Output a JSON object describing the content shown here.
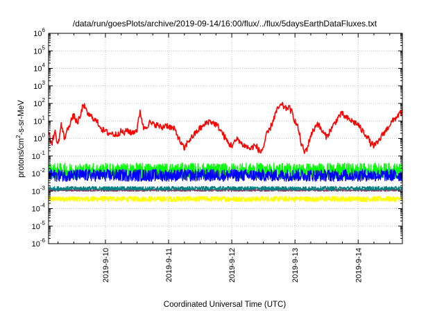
{
  "chart_data": {
    "type": "line",
    "title": "/data/run/goesPlots/archive/2019-09-14/16:00/flux/../flux/5daysEarthDataFluxes.txt",
    "xlabel": "Coordinated Universal Time (UTC)",
    "ylabel": {
      "pre": "protons/cm",
      "sup": "2",
      "post": "-s-sr-MeV"
    },
    "yscale": "log",
    "ylim_exp": [
      -6,
      6
    ],
    "y_ticks": [
      {
        "base": "10",
        "exp": "-6"
      },
      {
        "base": "10",
        "exp": "-5"
      },
      {
        "base": "10",
        "exp": "-4"
      },
      {
        "base": "10",
        "exp": "-3"
      },
      {
        "base": "10",
        "exp": "-2"
      },
      {
        "base": "10",
        "exp": "-1"
      },
      {
        "base": "10",
        "exp": "0"
      },
      {
        "base": "10",
        "exp": "1"
      },
      {
        "base": "10",
        "exp": "2"
      },
      {
        "base": "10",
        "exp": "3"
      },
      {
        "base": "10",
        "exp": "4"
      },
      {
        "base": "10",
        "exp": "5"
      },
      {
        "base": "10",
        "exp": "6"
      }
    ],
    "x_range_days": [
      9.1,
      14.7
    ],
    "x_ticks": [
      {
        "label": "2019-9-10",
        "day": 10
      },
      {
        "label": "2019-9-11",
        "day": 11
      },
      {
        "label": "2019-9-12",
        "day": 12
      },
      {
        "label": "2019-9-13",
        "day": 13
      },
      {
        "label": "2019-9-14",
        "day": 14
      }
    ],
    "grid": true,
    "series": [
      {
        "color": "#ff0000",
        "x": [
          9.1,
          9.15,
          9.2,
          9.25,
          9.3,
          9.35,
          9.4,
          9.45,
          9.5,
          9.55,
          9.6,
          9.65,
          9.7,
          9.75,
          9.8,
          9.85,
          9.9,
          9.95,
          10.0,
          10.05,
          10.1,
          10.15,
          10.2,
          10.25,
          10.3,
          10.35,
          10.4,
          10.45,
          10.5,
          10.55,
          10.6,
          10.65,
          10.7,
          10.75,
          10.8,
          10.85,
          10.9,
          10.95,
          11.0,
          11.05,
          11.1,
          11.15,
          11.2,
          11.25,
          11.3,
          11.35,
          11.4,
          11.45,
          11.5,
          11.55,
          11.6,
          11.65,
          11.7,
          11.75,
          11.8,
          11.85,
          11.9,
          11.95,
          12.0,
          12.05,
          12.1,
          12.15,
          12.2,
          12.25,
          12.3,
          12.35,
          12.4,
          12.45,
          12.5,
          12.55,
          12.6,
          12.65,
          12.7,
          12.75,
          12.8,
          12.85,
          12.9,
          12.95,
          13.0,
          13.05,
          13.1,
          13.15,
          13.2,
          13.25,
          13.3,
          13.35,
          13.4,
          13.45,
          13.5,
          13.55,
          13.6,
          13.65,
          13.7,
          13.75,
          13.8,
          13.85,
          13.9,
          13.95,
          14.0,
          14.05,
          14.1,
          14.15,
          14.2,
          14.25,
          14.3,
          14.35,
          14.4,
          14.45,
          14.5,
          14.55,
          14.6,
          14.65,
          14.7
        ],
        "y_log10": [
          0.3,
          -0.3,
          0.4,
          -0.4,
          0.8,
          0.0,
          0.5,
          1.0,
          1.3,
          0.9,
          1.2,
          2.0,
          1.5,
          1.3,
          1.2,
          1.0,
          0.8,
          0.5,
          0.4,
          0.3,
          0.3,
          0.2,
          0.3,
          0.4,
          0.3,
          0.5,
          0.3,
          0.4,
          0.5,
          1.6,
          0.6,
          0.7,
          0.9,
          0.8,
          0.8,
          0.7,
          0.6,
          0.8,
          0.7,
          0.6,
          0.5,
          0.1,
          -0.3,
          -0.6,
          -0.2,
          0.0,
          0.2,
          0.4,
          0.6,
          0.7,
          0.9,
          1.0,
          0.9,
          0.8,
          0.6,
          0.3,
          0.0,
          -0.3,
          -0.4,
          -0.2,
          0.0,
          -0.3,
          -0.4,
          -0.5,
          -0.6,
          -0.4,
          -0.5,
          -0.8,
          -0.5,
          0.2,
          0.5,
          1.0,
          1.5,
          1.8,
          1.9,
          1.7,
          1.8,
          1.5,
          1.0,
          0.6,
          -0.3,
          -0.8,
          -0.5,
          0.2,
          0.5,
          0.9,
          0.6,
          0.3,
          0.1,
          0.4,
          0.7,
          1.0,
          1.3,
          1.4,
          1.2,
          1.1,
          1.0,
          0.9,
          0.8,
          0.5,
          0.3,
          0.1,
          -0.3,
          -0.4,
          -0.3,
          0.0,
          0.3,
          0.5,
          0.8,
          1.0,
          1.2,
          1.4,
          1.5
        ],
        "noise": 0.18
      },
      {
        "color": "#00ff00",
        "x": [
          9.1,
          14.7
        ],
        "y_log10": [
          -1.85,
          -1.85
        ],
        "noise": 0.45
      },
      {
        "color": "#0000ff",
        "x": [
          9.1,
          14.7
        ],
        "y_log10": [
          -2.1,
          -2.1
        ],
        "noise": 0.35
      },
      {
        "color": "#008080",
        "x": [
          9.1,
          14.7
        ],
        "y_log10": [
          -2.85,
          -2.85
        ],
        "noise": 0.12
      },
      {
        "color": "#8b3a62",
        "x": [
          9.1,
          14.7
        ],
        "y_log10": [
          -2.95,
          -2.95
        ],
        "noise": 0.07
      },
      {
        "color": "#ffff00",
        "x": [
          9.1,
          14.7
        ],
        "y_log10": [
          -3.45,
          -3.45
        ],
        "noise": 0.16
      }
    ]
  }
}
